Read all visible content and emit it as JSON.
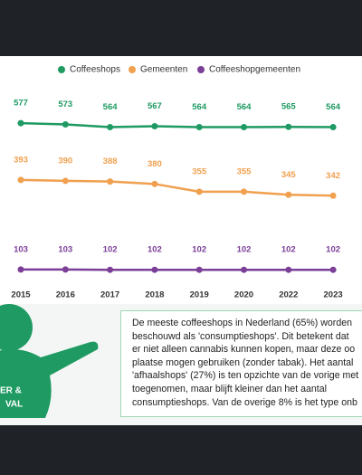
{
  "chart_data": {
    "type": "line",
    "categories": [
      "2015",
      "2016",
      "2017",
      "2018",
      "2019",
      "2020",
      "2022",
      "2023"
    ],
    "series": [
      {
        "name": "Coffeeshops",
        "color": "#1e9a62",
        "values": [
          577,
          573,
          564,
          567,
          564,
          564,
          565,
          564
        ]
      },
      {
        "name": "Gemeenten",
        "color": "#f0a04e",
        "values": [
          393,
          390,
          388,
          380,
          355,
          355,
          345,
          342
        ]
      },
      {
        "name": "Coffeeshopgemeenten",
        "color": "#7b3f98",
        "values": [
          103,
          103,
          102,
          102,
          102,
          102,
          102,
          102
        ]
      }
    ],
    "ylim": [
      0,
      800
    ]
  },
  "figure": {
    "label_lines": [
      "ER &",
      "VAL"
    ]
  },
  "note": {
    "lines": [
      "De meeste coffeeshops in Nederland (65%) worden",
      "beschouwd als 'consumptieshops'. Dit betekent dat",
      "er niet alleen cannabis kunnen kopen, maar deze oo",
      "plaatse mogen gebruiken (zonder tabak). Het aantal",
      "'afhaalshops' (27%) is ten opzichte van de vorige met",
      "toegenomen, maar blijft kleiner dan het aantal",
      "consumptieshops. Van de overige 8% is het type onb"
    ]
  }
}
